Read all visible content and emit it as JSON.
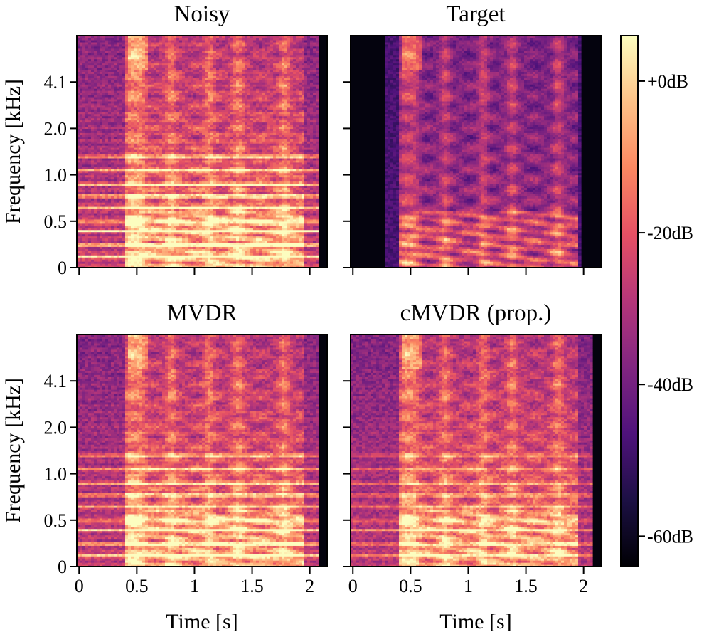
{
  "chart_data": {
    "type": "heatmap",
    "panels": [
      {
        "id": "noisy",
        "title": "Noisy",
        "variant": "noisy",
        "show_ylabels": true,
        "show_xlabels": false
      },
      {
        "id": "target",
        "title": "Target",
        "variant": "target",
        "show_ylabels": false,
        "show_xlabels": false
      },
      {
        "id": "mvdr",
        "title": "MVDR",
        "variant": "mvdr",
        "show_ylabels": true,
        "show_xlabels": true
      },
      {
        "id": "cmvdr",
        "title": "cMVDR (prop.)",
        "variant": "cmvdr",
        "show_ylabels": false,
        "show_xlabels": true
      }
    ],
    "xlabel": "Time [s]",
    "ylabel": "Frequency [kHz]",
    "x_ticks": [
      {
        "value": 0,
        "label": "0"
      },
      {
        "value": 0.5,
        "label": "0.5"
      },
      {
        "value": 1,
        "label": "1"
      },
      {
        "value": 1.5,
        "label": "1.5"
      },
      {
        "value": 2,
        "label": "2"
      }
    ],
    "y_ticks": [
      {
        "value": 0,
        "label": "0"
      },
      {
        "value": 0.5,
        "label": "0.5"
      },
      {
        "value": 1.0,
        "label": "1.0"
      },
      {
        "value": 2.0,
        "label": "2.0"
      },
      {
        "value": 4.1,
        "label": "4.1"
      }
    ],
    "xlim": [
      -0.02,
      2.15
    ],
    "ylim": [
      0,
      8
    ],
    "time_end_s": 2.05,
    "colorbar": {
      "colormap": "magma",
      "range_db": [
        -64,
        6
      ],
      "ticks": [
        {
          "value": 0,
          "label": "+0dB"
        },
        {
          "value": -20,
          "label": "-20dB"
        },
        {
          "value": -40,
          "label": "-40dB"
        },
        {
          "value": -60,
          "label": "-60dB"
        }
      ]
    }
  }
}
